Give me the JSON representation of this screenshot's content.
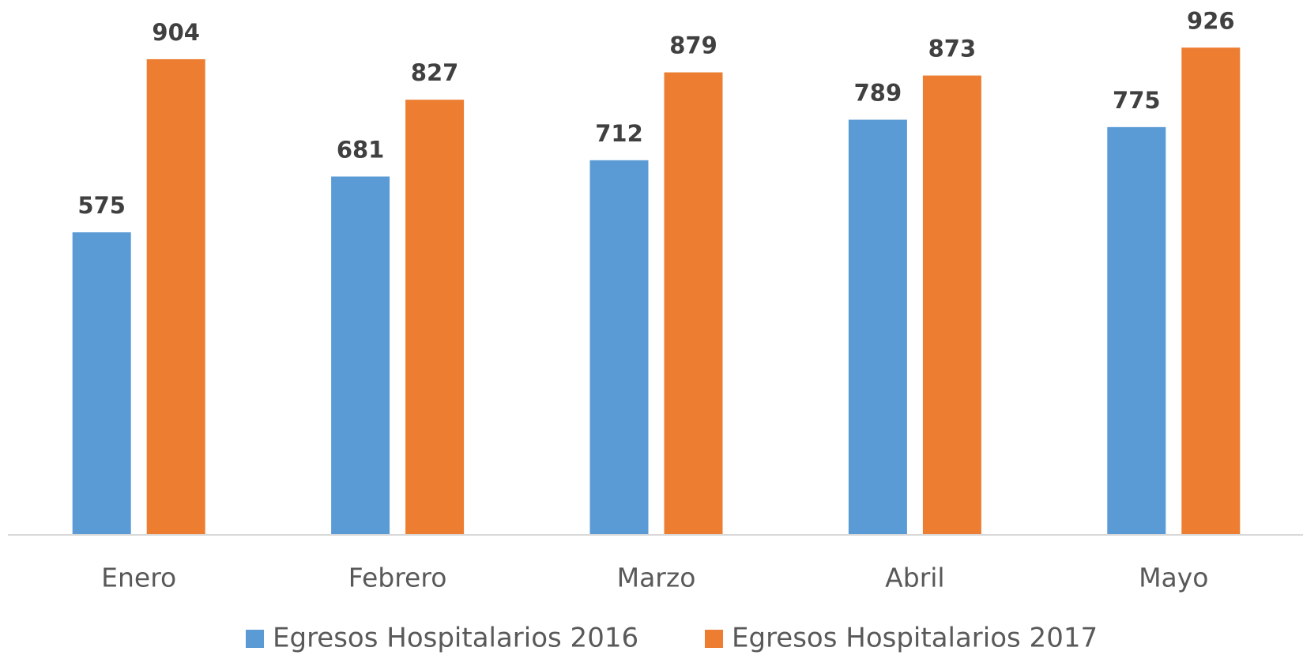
{
  "chart_data": {
    "type": "bar",
    "categories": [
      "Enero",
      "Febrero",
      "Marzo",
      "Abril",
      "Mayo"
    ],
    "series": [
      {
        "name": "Egresos Hospitalarios 2016",
        "color": "#5b9bd5",
        "values": [
          575,
          681,
          712,
          789,
          775
        ]
      },
      {
        "name": "Egresos Hospitalarios 2017",
        "color": "#ed7d31",
        "values": [
          904,
          827,
          879,
          873,
          926
        ]
      }
    ],
    "ylim": [
      0,
      1000
    ],
    "legend": "bottom"
  }
}
